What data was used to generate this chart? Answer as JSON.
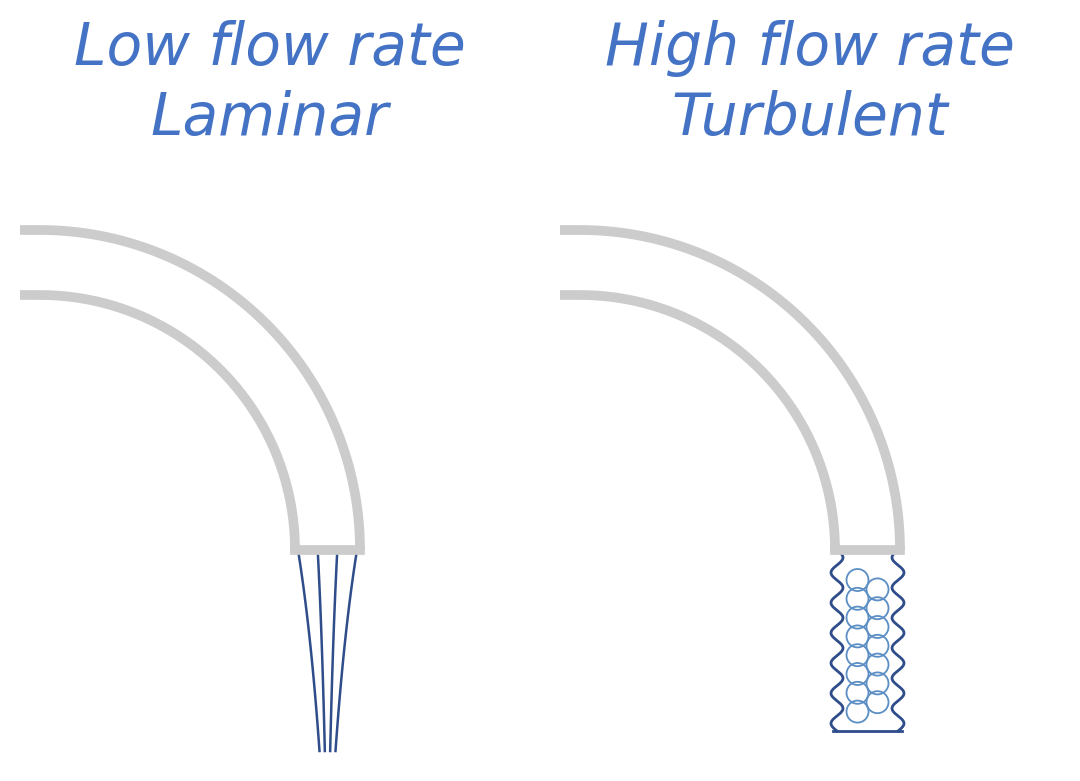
{
  "title_left_line1": "Low flow rate",
  "title_left_line2": "Laminar",
  "title_right_line1": "High flow rate",
  "title_right_line2": "Turbulent",
  "title_color": "#4472C4",
  "title_fontsize": 42,
  "faucet_color": "#CCCCCC",
  "faucet_lw": 7,
  "water_color": "#2E4D8A",
  "bubble_color": "#5B8EC4",
  "background_color": "#FFFFFF",
  "fig_width": 10.8,
  "fig_height": 7.81,
  "dpi": 100
}
